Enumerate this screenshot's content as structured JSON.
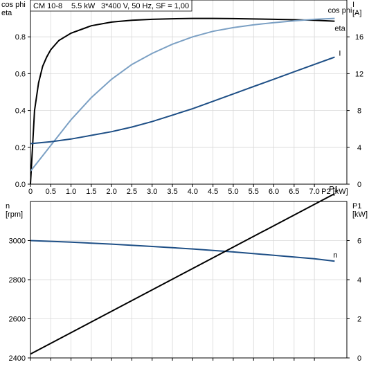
{
  "header": {
    "model": "CM 10-8",
    "power": "5.5 kW",
    "supply": "3*400 V, 50 Hz, SF = 1,00"
  },
  "chart_data": [
    {
      "type": "line",
      "x_title": "P2 [kW]",
      "x_ticks": [
        "0",
        "0.5",
        "1.0",
        "1.5",
        "2.0",
        "2.5",
        "3.0",
        "3.5",
        "4.0",
        "4.5",
        "5.0",
        "5.5",
        "6.0",
        "6.5",
        "7.0"
      ],
      "xlim": [
        0,
        7.8
      ],
      "left_axis": {
        "label_lines": [
          "cos phi",
          "eta"
        ],
        "ylim": [
          0,
          1.0
        ],
        "ticks": [
          "0.0",
          "0.2",
          "0.4",
          "0.6",
          "0.8"
        ]
      },
      "right_axis": {
        "label_lines": [
          "I",
          "[A]"
        ],
        "ylim": [
          0,
          20
        ],
        "ticks": [
          "0",
          "4",
          "8",
          "12",
          "16"
        ]
      },
      "grid": true,
      "series": [
        {
          "name": "eta",
          "axis": "left",
          "color": "#000000",
          "x": [
            0,
            0.1,
            0.2,
            0.3,
            0.4,
            0.5,
            0.7,
            1.0,
            1.5,
            2.0,
            2.5,
            3.0,
            3.5,
            4.0,
            4.5,
            5.0,
            5.5,
            6.0,
            6.5,
            7.0,
            7.5
          ],
          "y": [
            0,
            0.4,
            0.55,
            0.64,
            0.69,
            0.73,
            0.78,
            0.82,
            0.86,
            0.88,
            0.89,
            0.895,
            0.898,
            0.9,
            0.9,
            0.899,
            0.897,
            0.895,
            0.893,
            0.89,
            0.885
          ]
        },
        {
          "name": "cos phi",
          "axis": "left",
          "color": "#7ba0c4",
          "x": [
            0,
            0.5,
            1.0,
            1.5,
            2.0,
            2.5,
            3.0,
            3.5,
            4.0,
            4.5,
            5.0,
            5.5,
            6.0,
            6.5,
            7.0,
            7.5
          ],
          "y": [
            0.07,
            0.21,
            0.35,
            0.47,
            0.57,
            0.65,
            0.71,
            0.76,
            0.8,
            0.83,
            0.85,
            0.865,
            0.877,
            0.887,
            0.895,
            0.9
          ]
        },
        {
          "name": "I",
          "axis": "right",
          "color": "#1e4f86",
          "x": [
            0,
            0.5,
            1.0,
            1.5,
            2.0,
            2.5,
            3.0,
            3.5,
            4.0,
            4.5,
            5.0,
            5.5,
            6.0,
            6.5,
            7.0,
            7.5
          ],
          "y": [
            4.4,
            4.6,
            4.9,
            5.3,
            5.7,
            6.2,
            6.8,
            7.5,
            8.2,
            9.0,
            9.8,
            10.6,
            11.4,
            12.2,
            13.0,
            13.8
          ]
        }
      ]
    },
    {
      "type": "line",
      "xlim": [
        0,
        7.8
      ],
      "left_axis": {
        "label_lines": [
          "n",
          "[rpm]"
        ],
        "ylim": [
          2400,
          3200
        ],
        "ticks": [
          "2400",
          "2600",
          "2800",
          "3000"
        ]
      },
      "right_axis": {
        "label_lines": [
          "P1",
          "[kW]"
        ],
        "ylim": [
          0,
          8
        ],
        "ticks": [
          "0",
          "2",
          "4",
          "6"
        ]
      },
      "grid": true,
      "series": [
        {
          "name": "n",
          "axis": "left",
          "color": "#1e4f86",
          "x": [
            0,
            1.0,
            2.0,
            3.0,
            4.0,
            5.0,
            6.0,
            7.0,
            7.5
          ],
          "y": [
            3000,
            2992,
            2982,
            2970,
            2957,
            2942,
            2925,
            2907,
            2895
          ]
        },
        {
          "name": "P1",
          "axis": "right",
          "color": "#000000",
          "x": [
            0,
            7.5
          ],
          "y": [
            0.2,
            8.4
          ]
        }
      ]
    }
  ]
}
